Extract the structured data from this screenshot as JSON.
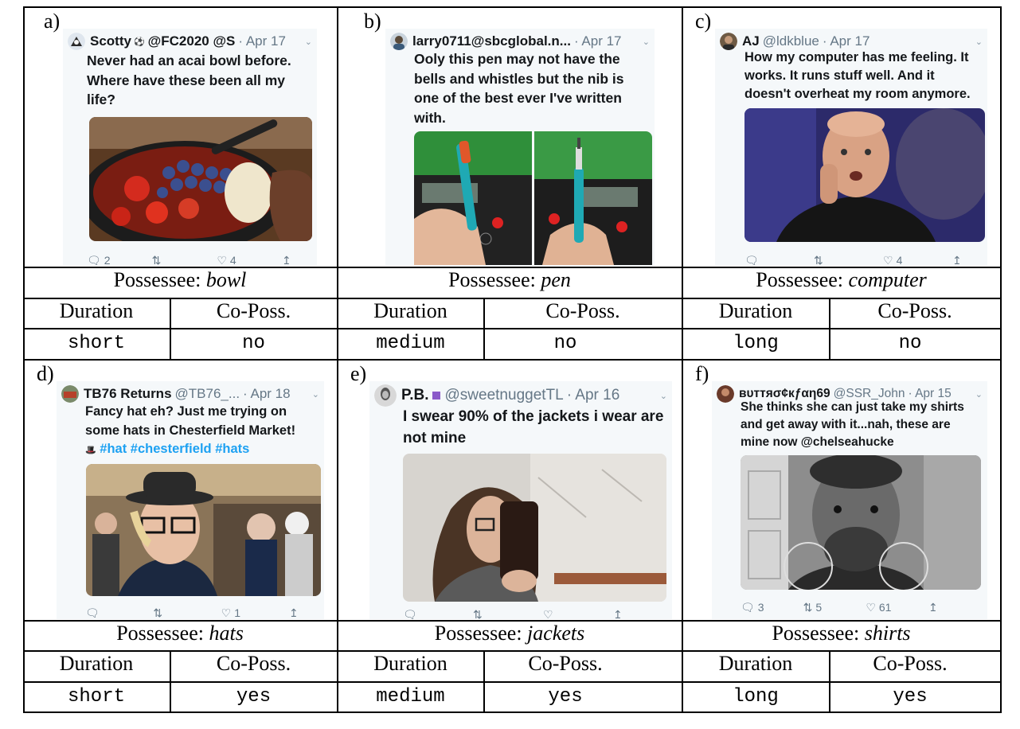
{
  "panels": [
    {
      "letter": "a)",
      "tweet": {
        "name": "Scotty",
        "badge": "⚽",
        "handle": "@FC2020 @S",
        "date": "· Apr 17",
        "text": "Never had an acai bowl before. Where have these been all my life?",
        "tags": "",
        "replies": "2",
        "retweets": "",
        "likes": "4"
      },
      "possessee_label": "Possessee:",
      "possessee": "bowl",
      "duration_header": "Duration",
      "coposs_header": "Co-Poss.",
      "duration": "short",
      "coposs": "no"
    },
    {
      "letter": "b)",
      "tweet": {
        "name": "larry0711@sbcglobal.n...",
        "badge": "",
        "handle": "",
        "date": "· Apr 17",
        "text": "Ooly this pen may not have the bells and whistles but the nib is one of the best ever I've written with.",
        "tags": "",
        "replies": "",
        "retweets": "",
        "likes": ""
      },
      "possessee_label": "Possessee:",
      "possessee": "pen",
      "duration_header": "Duration",
      "coposs_header": "Co-Poss.",
      "duration": "medium",
      "coposs": "no"
    },
    {
      "letter": "c)",
      "tweet": {
        "name": "AJ",
        "badge": "",
        "handle": "@ldkblue",
        "date": "· Apr 17",
        "text": "How my computer has me feeling. It works. It runs stuff well. And it doesn't overheat my room anymore.",
        "tags": "",
        "replies": "",
        "retweets": "",
        "likes": "4"
      },
      "possessee_label": "Possessee:",
      "possessee": "computer",
      "duration_header": "Duration",
      "coposs_header": "Co-Poss.",
      "duration": "long",
      "coposs": "no"
    },
    {
      "letter": "d)",
      "tweet": {
        "name": "TB76 Returns",
        "badge": "",
        "handle": "@TB76_...",
        "date": "· Apr 18",
        "text": "Fancy hat eh? Just me trying on some hats in Chesterfield Market!",
        "tags": "#hat #chesterfield #hats",
        "replies": "",
        "retweets": "",
        "likes": "1"
      },
      "possessee_label": "Possessee:",
      "possessee": "hats",
      "duration_header": "Duration",
      "coposs_header": "Co-Poss.",
      "duration": "short",
      "coposs": "yes"
    },
    {
      "letter": "e)",
      "tweet": {
        "name": "P.B.",
        "badge": "",
        "handle": "@sweetnuggetTL",
        "date": "· Apr 16",
        "text": "I swear 90% of the jackets i wear are not mine",
        "tags": "",
        "replies": "",
        "retweets": "",
        "likes": ""
      },
      "possessee_label": "Possessee:",
      "possessee": "jackets",
      "duration_header": "Duration",
      "coposs_header": "Co-Poss.",
      "duration": "medium",
      "coposs": "yes"
    },
    {
      "letter": "f)",
      "tweet": {
        "name": "ʙᴜᴛᴛяσ¢кƒαη69",
        "badge": "",
        "handle": "@SSR_John",
        "date": "· Apr 15",
        "text": "She thinks she can just take my shirts and get away with it...nah, these are mine now @chelseahucke",
        "tags": "",
        "replies": "3",
        "retweets": "5",
        "likes": "61"
      },
      "possessee_label": "Possessee:",
      "possessee": "shirts",
      "duration_header": "Duration",
      "coposs_header": "Co-Poss.",
      "duration": "long",
      "coposs": "yes"
    }
  ],
  "colors": {
    "border": "#000000",
    "tweet_bg": "#f5f8fa",
    "hashtag": "#1da1f2",
    "muted": "#657786"
  }
}
